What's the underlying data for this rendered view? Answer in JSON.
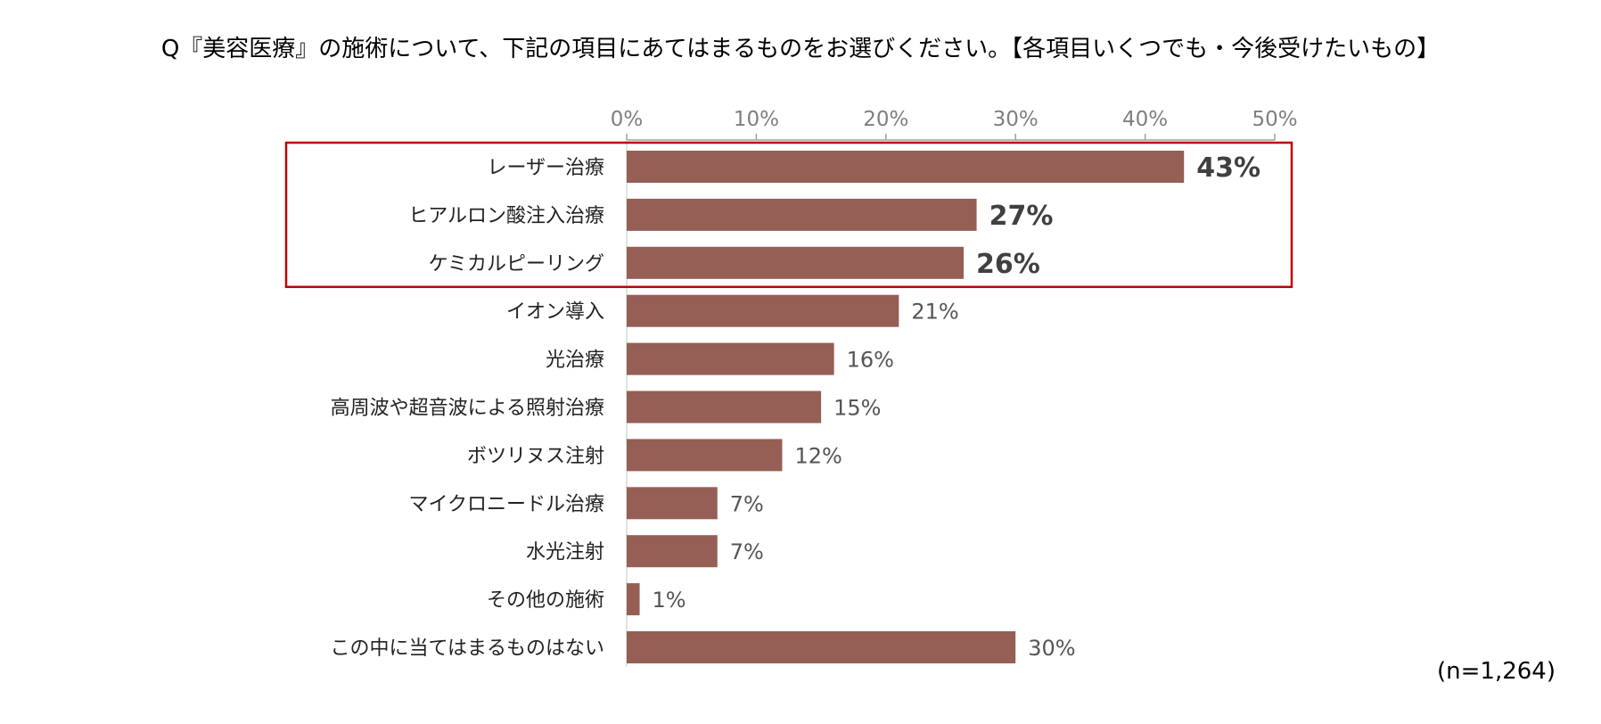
{
  "title": "Q『美容医療』の施術について、下記の項目にあてはまるものをお選びください。【各項目いくつでも・今後受けたいもの】",
  "sample_note": "(n=1,264)",
  "colors": {
    "bar": "#955F55",
    "highlight_border": "#C00000",
    "axis": "#A0A0A0"
  },
  "chart_data": {
    "type": "bar",
    "orientation": "horizontal",
    "title": "Q『美容医療』の施術について、下記の項目にあてはまるものをお選びください。【各項目いくつでも・今後受けたいもの】",
    "xlabel": "",
    "ylabel": "",
    "xlim": [
      0,
      50
    ],
    "unit": "%",
    "ticks": [
      0,
      10,
      20,
      30,
      40,
      50
    ],
    "tick_labels": [
      "0%",
      "10%",
      "20%",
      "30%",
      "40%",
      "50%"
    ],
    "categories": [
      "レーザー治療",
      "ヒアルロン酸注入治療",
      "ケミカルピーリング",
      "イオン導入",
      "光治療",
      "高周波や超音波による照射治療",
      "ボツリヌス注射",
      "マイクロニードル治療",
      "水光注射",
      "その他の施術",
      "この中に当てはまるものはない"
    ],
    "values": [
      43,
      27,
      26,
      21,
      16,
      15,
      12,
      7,
      7,
      1,
      30
    ],
    "value_labels": [
      "43%",
      "27%",
      "26%",
      "21%",
      "16%",
      "15%",
      "12%",
      "7%",
      "7%",
      "1%",
      "30%"
    ],
    "highlighted": [
      0,
      1,
      2
    ],
    "grid": false
  }
}
